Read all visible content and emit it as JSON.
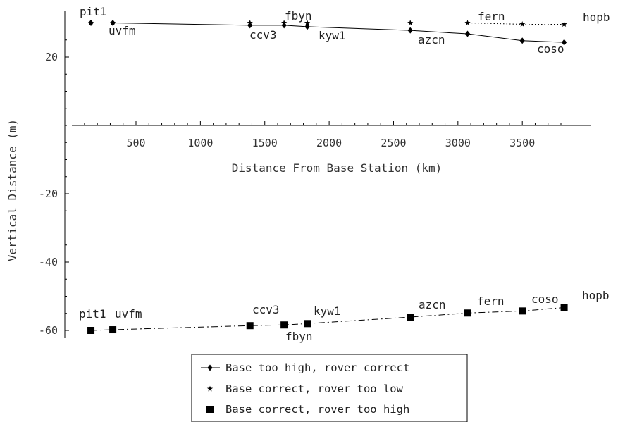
{
  "chart_data": {
    "type": "line",
    "xlabel": "Distance From Base Station (km)",
    "ylabel": "Vertical Distance (m)",
    "xlim": [
      0,
      3900
    ],
    "ylim": [
      -63,
      31
    ],
    "x_ticks": [
      500,
      1000,
      1500,
      2000,
      2500,
      3000,
      3500
    ],
    "y_ticks": [
      20,
      -20,
      -40,
      -60
    ],
    "x_tick_labels": [
      "500",
      "1000",
      "1500",
      "2000",
      "2500",
      "3000",
      "3500"
    ],
    "y_tick_labels": [
      "20",
      "-20",
      "-40",
      "-60"
    ],
    "legend_position": "bottom-center",
    "series": [
      {
        "name": "Base too high, rover correct",
        "marker": "diamond",
        "line_style": "solid",
        "x": [
          150,
          320,
          1385,
          1650,
          1830,
          2630,
          3075,
          3500,
          3825
        ],
        "y": [
          30.0,
          30.0,
          29.3,
          29.3,
          28.9,
          27.8,
          26.8,
          24.8,
          24.3
        ],
        "labels": [
          "pit1",
          "uvfm",
          "ccv3",
          "fbyn",
          "kyw1",
          "azcn",
          "fern",
          "coso",
          "hopb"
        ]
      },
      {
        "name": "Base correct, rover too low",
        "marker": "star",
        "line_style": "dotted",
        "x": [
          150,
          320,
          1385,
          1650,
          1830,
          2630,
          3075,
          3500,
          3825
        ],
        "y": [
          30.0,
          30.0,
          30.0,
          30.0,
          30.0,
          30.0,
          30.0,
          29.6,
          29.6
        ],
        "labels": [
          "pit1",
          "uvfm",
          "ccv3",
          "fbyn",
          "kyw1",
          "azcn",
          "fern",
          "coso",
          "hopb"
        ]
      },
      {
        "name": "Base correct, rover too high",
        "marker": "square",
        "line_style": "dashdot",
        "x": [
          150,
          320,
          1385,
          1650,
          1830,
          2630,
          3075,
          3500,
          3825
        ],
        "y": [
          -60.0,
          -59.8,
          -58.6,
          -58.4,
          -58.0,
          -56.1,
          -54.9,
          -54.3,
          -53.3
        ],
        "labels": [
          "pit1",
          "uvfm",
          "ccv3",
          "fbyn",
          "kyw1",
          "azcn",
          "fern",
          "coso",
          "hopb"
        ]
      }
    ]
  }
}
